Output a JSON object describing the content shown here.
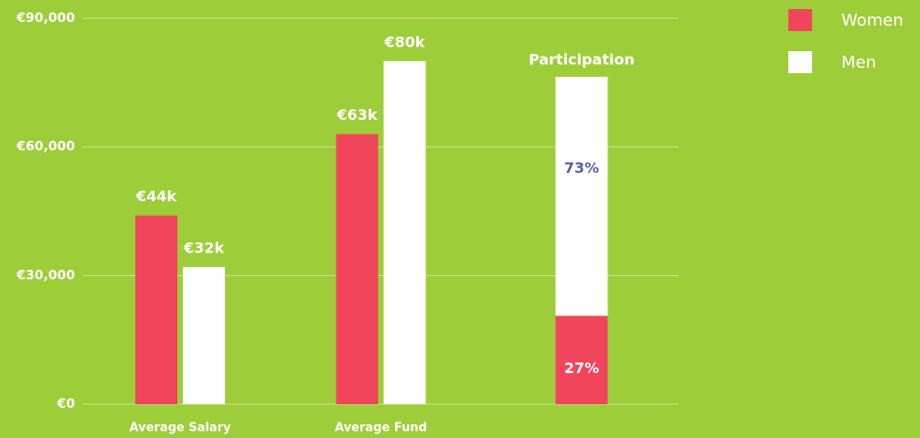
{
  "chart_data": [
    {
      "type": "bar",
      "categories": [
        "Average Salary",
        "Average Fund"
      ],
      "series": [
        {
          "name": "Women",
          "color": "#f0455a",
          "values": [
            44000,
            63000
          ],
          "value_labels": [
            "€44k",
            "€63k"
          ]
        },
        {
          "name": "Men",
          "color": "#ffffff",
          "values": [
            32000,
            80000
          ],
          "value_labels": [
            "€32k",
            "€80k"
          ]
        }
      ],
      "ylim": [
        0,
        90000
      ],
      "yticks": [
        {
          "value": 0,
          "label": "€0"
        },
        {
          "value": 30000,
          "label": "€30,000"
        },
        {
          "value": 60000,
          "label": "€60,000"
        },
        {
          "value": 90000,
          "label": "€90,000"
        }
      ],
      "grid": true,
      "legend": "upper right"
    },
    {
      "type": "stacked_bar",
      "title": "Participation",
      "values": [
        27,
        73
      ],
      "value_labels": [
        "27%",
        "73%"
      ],
      "label_colors": [
        "#ffffff",
        "#5b5ea6"
      ]
    }
  ]
}
